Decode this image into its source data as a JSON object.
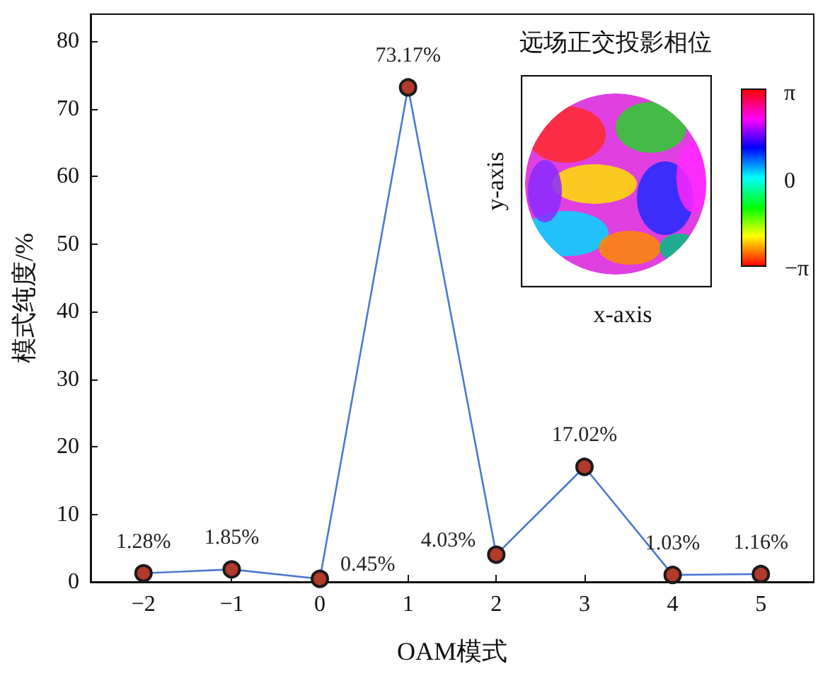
{
  "chart_data": {
    "type": "line",
    "xlabel": "OAM模式",
    "ylabel": "模式纯度/%",
    "x": [
      -2,
      -1,
      0,
      1,
      2,
      3,
      4,
      5
    ],
    "series": [
      {
        "color": "#4a78d0",
        "values": [
          1.28,
          1.85,
          0.45,
          73.17,
          4.03,
          17.02,
          1.03,
          1.16
        ],
        "value_labels": [
          "1.28%",
          "1.85%",
          "0.45%",
          "73.17%",
          "4.03%",
          "17.02%",
          "1.03%",
          "1.16%"
        ]
      }
    ],
    "xlim": [
      -2.6,
      5.6
    ],
    "xticks": [
      {
        "value": -2,
        "label": "−2"
      },
      {
        "value": -1,
        "label": "−1"
      },
      0,
      1,
      2,
      3,
      4,
      5
    ],
    "ylim": [
      0,
      84
    ],
    "yticks": [
      0,
      10,
      20,
      30,
      40,
      50,
      60,
      70,
      80
    ],
    "marker": "circle",
    "line_style": "solid",
    "annotations": [
      "远场正交投影相位",
      "y-axis",
      "x-axis",
      "π",
      "0",
      "−π"
    ]
  }
}
